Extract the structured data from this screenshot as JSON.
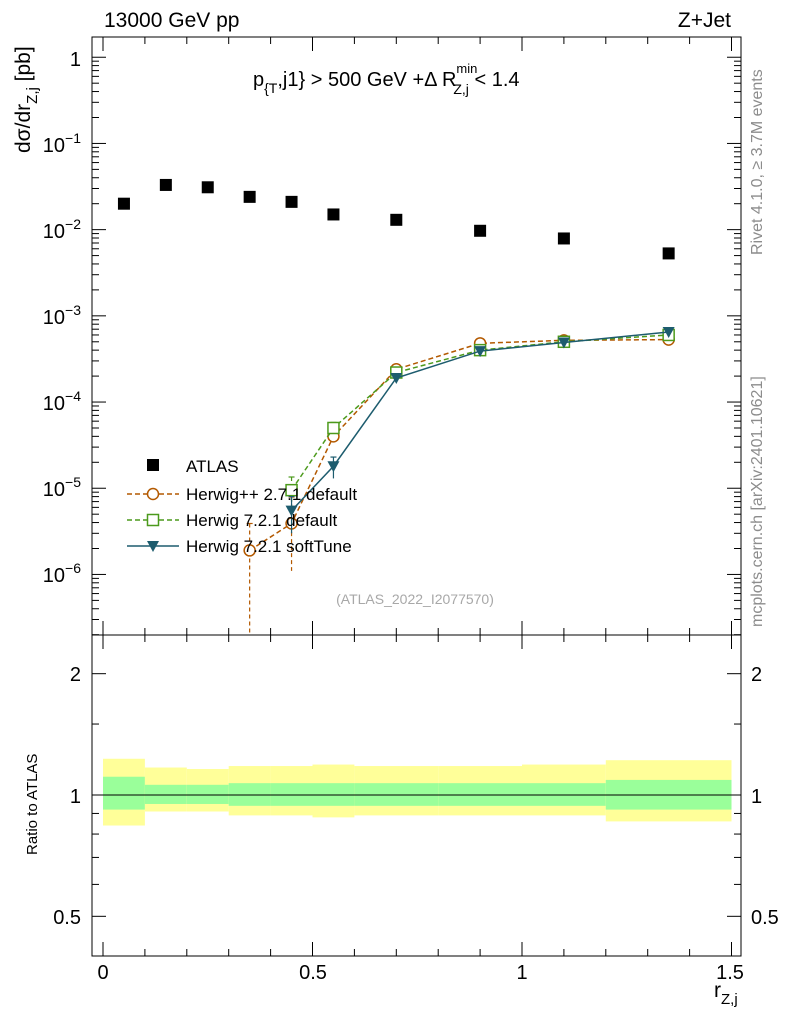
{
  "header": {
    "energy_label": "13000 GeV pp",
    "process_label": "Z+Jet",
    "cut_text": {
      "part1": "p",
      "sub1": "{T",
      "part2": ",j1} > 500 GeV +Δ R",
      "sup2": "min",
      "sub2": "Z,j",
      "part3": " < 1.4"
    },
    "side_label_top": "Rivet 4.1.0, ≥ 3.7M events",
    "side_label_bottom": "mcplots.cern.ch [arXiv:2401.10621]",
    "watermark": "(ATLAS_2022_I2077570)"
  },
  "axes": {
    "ylabel_main": {
      "base": "dσ/dr",
      "sub": "Z,j",
      "suffix": " [pb]"
    },
    "ylabel_ratio": "Ratio to ATLAS",
    "xlabel": {
      "base": "r",
      "sub": "Z,j"
    },
    "x_ticks": [
      "0",
      "0.5",
      "1",
      "1.5"
    ],
    "y_ticks_main": [
      {
        "base": "1",
        "exp": ""
      },
      {
        "base": "10",
        "exp": "−1"
      },
      {
        "base": "10",
        "exp": "−2"
      },
      {
        "base": "10",
        "exp": "−3"
      },
      {
        "base": "10",
        "exp": "−4"
      },
      {
        "base": "10",
        "exp": "−5"
      },
      {
        "base": "10",
        "exp": "−6"
      }
    ],
    "y_ticks_ratio": [
      "2",
      "1",
      "0.5"
    ]
  },
  "legend": {
    "entries": [
      "ATLAS",
      "Herwig++ 2.7.1 default",
      "Herwig 7.2.1 default",
      "Herwig 7.2.1 softTune"
    ]
  },
  "chart_data": [
    {
      "type": "scatter",
      "title": "p_{T},j1} > 500 GeV +Δ R^min_Z,j < 1.4",
      "xlabel": "r_Z,j",
      "ylabel": "dσ/dr_Z,j [pb]",
      "xlim": [
        -0.05,
        1.55
      ],
      "ylim": [
        2.5e-07,
        1.8
      ],
      "yscale": "log",
      "series": [
        {
          "name": "ATLAS",
          "marker": "square",
          "color": "#000000",
          "x": [
            0.05,
            0.15,
            0.25,
            0.35,
            0.45,
            0.55,
            0.7,
            0.9,
            1.1,
            1.35
          ],
          "y": [
            0.02,
            0.033,
            0.031,
            0.024,
            0.021,
            0.015,
            0.013,
            0.0097,
            0.0079,
            0.0053
          ]
        },
        {
          "name": "Herwig++ 2.7.1 default",
          "marker": "open-circle",
          "line": "dashed",
          "color": "#b35900",
          "x": [
            0.35,
            0.45,
            0.55,
            0.7,
            0.9,
            1.1,
            1.35
          ],
          "y": [
            1.9e-06,
            3.9e-06,
            4e-05,
            0.00024,
            0.00048,
            0.00052,
            0.00053
          ],
          "yerr_low": [
            1.9e-06,
            2.8e-06,
            7e-06,
            2e-05,
            3e-05,
            3e-05,
            3e-05
          ],
          "yerr_high": [
            2e-06,
            4e-06,
            8e-06,
            2e-05,
            3e-05,
            3e-05,
            3e-05
          ]
        },
        {
          "name": "Herwig 7.2.1 default",
          "marker": "open-square",
          "line": "dashed",
          "color": "#4c9a1c",
          "x": [
            0.45,
            0.55,
            0.7,
            0.9,
            1.1,
            1.35
          ],
          "y": [
            9.5e-06,
            5e-05,
            0.00022,
            0.0004,
            0.0005,
            0.0006
          ],
          "yerr_low": [
            4e-06,
            8e-06,
            2e-05,
            3e-05,
            3e-05,
            3e-05
          ],
          "yerr_high": [
            4e-06,
            8e-06,
            2e-05,
            3e-05,
            3e-05,
            3e-05
          ]
        },
        {
          "name": "Herwig 7.2.1 softTune",
          "marker": "filled-triangle-down",
          "line": "solid",
          "color": "#1d5c6e",
          "x": [
            0.45,
            0.55,
            0.7,
            0.9,
            1.1,
            1.35
          ],
          "y": [
            5.5e-06,
            1.8e-05,
            0.00019,
            0.00039,
            0.00049,
            0.00065
          ],
          "yerr_low": [
            2.5e-06,
            5e-06,
            2e-05,
            3e-05,
            3e-05,
            3e-05
          ],
          "yerr_high": [
            2.5e-06,
            5e-06,
            2e-05,
            3e-05,
            3e-05,
            3e-05
          ]
        }
      ]
    },
    {
      "type": "area",
      "title": "Ratio to ATLAS",
      "ylabel": "Ratio to ATLAS",
      "xlabel": "r_Z,j",
      "xlim": [
        -0.05,
        1.55
      ],
      "ylim": [
        0.4,
        2.4
      ],
      "yscale": "log",
      "bins": [
        [
          0.0,
          0.1
        ],
        [
          0.1,
          0.2
        ],
        [
          0.2,
          0.3
        ],
        [
          0.3,
          0.4
        ],
        [
          0.4,
          0.5
        ],
        [
          0.5,
          0.6
        ],
        [
          0.6,
          0.8
        ],
        [
          0.8,
          1.0
        ],
        [
          1.0,
          1.2
        ],
        [
          1.2,
          1.5
        ]
      ],
      "stat_band_low": [
        0.92,
        0.95,
        0.95,
        0.94,
        0.94,
        0.94,
        0.94,
        0.94,
        0.94,
        0.92
      ],
      "stat_band_high": [
        1.11,
        1.06,
        1.06,
        1.07,
        1.07,
        1.07,
        1.07,
        1.07,
        1.07,
        1.09
      ],
      "total_band_low": [
        0.84,
        0.91,
        0.91,
        0.89,
        0.89,
        0.88,
        0.89,
        0.89,
        0.89,
        0.86
      ],
      "total_band_high": [
        1.23,
        1.17,
        1.16,
        1.18,
        1.18,
        1.19,
        1.18,
        1.18,
        1.19,
        1.22
      ],
      "reference_line": 1.0,
      "stat_band_color": "#9aff9a",
      "total_band_color": "#ffff99"
    }
  ]
}
